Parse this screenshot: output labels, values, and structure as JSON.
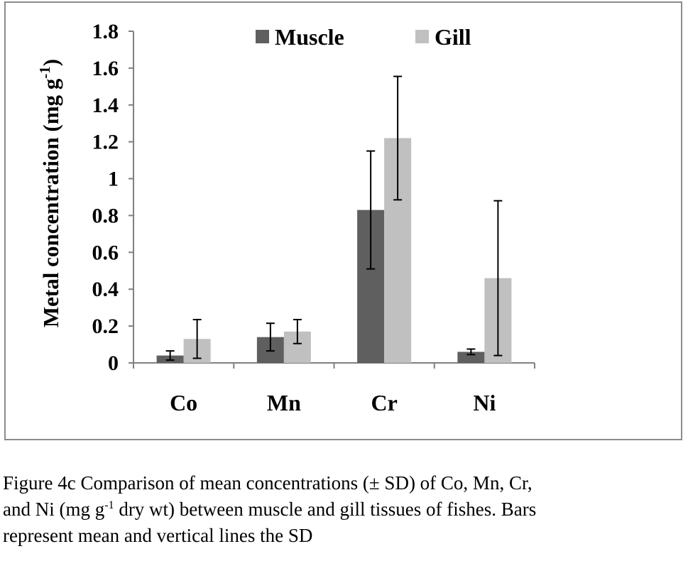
{
  "chart_data": {
    "type": "bar",
    "categories": [
      "Co",
      "Mn",
      "Cr",
      "Ni"
    ],
    "series": [
      {
        "name": "Muscle",
        "color": "#5f5f5f",
        "values": [
          0.04,
          0.14,
          0.83,
          0.06
        ],
        "sd": [
          0.025,
          0.075,
          0.32,
          0.015
        ]
      },
      {
        "name": "Gill",
        "color": "#c0c0c0",
        "values": [
          0.13,
          0.17,
          1.22,
          0.46
        ],
        "sd": [
          0.105,
          0.065,
          0.335,
          0.42
        ]
      }
    ],
    "ylim": [
      0,
      1.8
    ],
    "yticks": [
      0,
      0.2,
      0.4,
      0.6,
      0.8,
      1,
      1.2,
      1.4,
      1.6,
      1.8
    ],
    "ytick_labels": [
      "0",
      "0.2",
      "0.4",
      "0.6",
      "0.8",
      "1",
      "1.2",
      "1.4",
      "1.6",
      "1.8"
    ],
    "ylabel_main": "Metal concentration (mg g",
    "ylabel_sup": "-1",
    "ylabel_end": ")",
    "xlabel": "",
    "title": "",
    "grid": false,
    "legend_position": "top"
  },
  "caption": {
    "line1": "Figure 4c Comparison of mean concentrations (± SD) of Co, Mn, Cr,",
    "line2_a": "and Ni (mg g",
    "line2_sup": "-1",
    "line2_b": " dry wt) between muscle and gill tissues of fishes. Bars",
    "line3": "represent mean and vertical lines the SD"
  }
}
